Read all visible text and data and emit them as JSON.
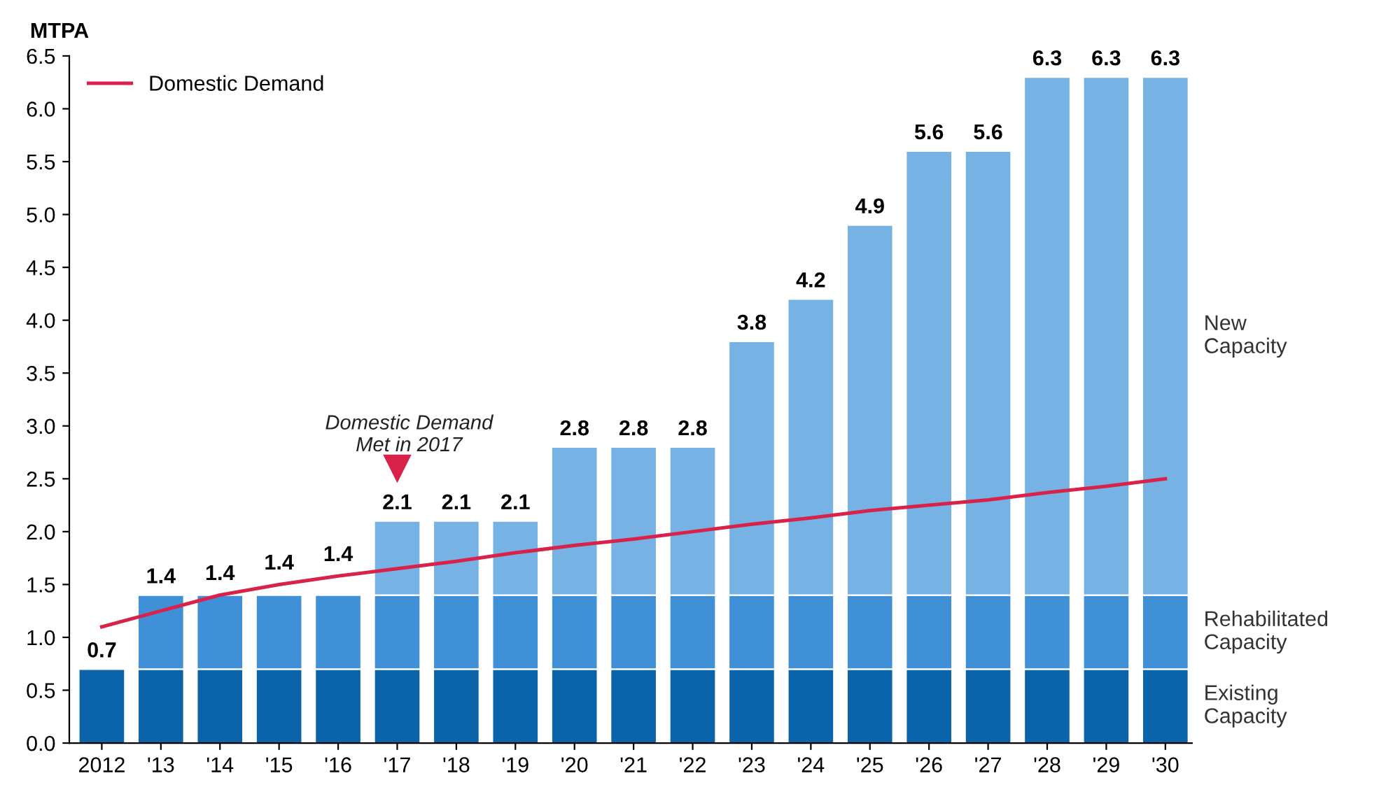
{
  "chart_data": {
    "type": "bar",
    "stacked": true,
    "ylabel": "MTPA",
    "categories": [
      "2012",
      "'13",
      "'14",
      "'15",
      "'16",
      "'17",
      "'18",
      "'19",
      "'20",
      "'21",
      "'22",
      "'23",
      "'24",
      "'25",
      "'26",
      "'27",
      "'28",
      "'29",
      "'30"
    ],
    "series": [
      {
        "name": "Existing Capacity",
        "color": "#0b64a9",
        "values": [
          0.7,
          0.7,
          0.7,
          0.7,
          0.7,
          0.7,
          0.7,
          0.7,
          0.7,
          0.7,
          0.7,
          0.7,
          0.7,
          0.7,
          0.7,
          0.7,
          0.7,
          0.7,
          0.7
        ]
      },
      {
        "name": "Rehabilitated Capacity",
        "color": "#3f90d7",
        "values": [
          null,
          0.7,
          0.7,
          0.7,
          0.7,
          0.7,
          0.7,
          0.7,
          0.7,
          0.7,
          0.7,
          0.7,
          0.7,
          0.7,
          0.7,
          0.7,
          0.7,
          0.7,
          0.7
        ]
      },
      {
        "name": "New Capacity",
        "color": "#76b2e3",
        "values": [
          null,
          null,
          null,
          null,
          null,
          0.7,
          0.7,
          0.7,
          1.4,
          1.4,
          1.4,
          2.4,
          2.8,
          3.5,
          4.2,
          4.2,
          4.9,
          4.9,
          4.9
        ]
      },
      {
        "name": "Domestic Demand",
        "type": "line",
        "color": "#d9224a",
        "values": [
          1.1,
          1.25,
          1.4,
          1.5,
          1.58,
          1.65,
          1.72,
          1.8,
          1.87,
          1.93,
          2.0,
          2.07,
          2.13,
          2.2,
          2.25,
          2.3,
          2.37,
          2.43,
          2.5
        ]
      }
    ],
    "totals": [
      "0.7",
      "1.4",
      "1.4",
      "1.4",
      "1.4",
      "2.1",
      "2.1",
      "2.1",
      "2.8",
      "2.8",
      "2.8",
      "3.8",
      "4.2",
      "4.9",
      "5.6",
      "5.6",
      "6.3",
      "6.3",
      "6.3"
    ],
    "annotations": [
      {
        "text": "Domestic Demand\nMet in 2017",
        "x": "'17",
        "y": 2.6
      }
    ],
    "ylim": [
      0,
      6.5
    ],
    "yticks": [
      {
        "value": 0,
        "label": "0.0"
      },
      {
        "value": 0.5,
        "label": "0.5"
      },
      {
        "value": 1,
        "label": "1.0"
      },
      {
        "value": 1.5,
        "label": "1.5"
      },
      {
        "value": 2,
        "label": "2.0"
      },
      {
        "value": 2.5,
        "label": "2.5"
      },
      {
        "value": 3,
        "label": "3.0"
      },
      {
        "value": 3.5,
        "label": "3.5"
      },
      {
        "value": 4,
        "label": "4.0"
      },
      {
        "value": 4.5,
        "label": "4.5"
      },
      {
        "value": 5,
        "label": "5.0"
      },
      {
        "value": 5.5,
        "label": "5.5"
      },
      {
        "value": 6,
        "label": "6.0"
      },
      {
        "value": 6.5,
        "label": "6.5"
      }
    ],
    "grid": false,
    "legend": "top left"
  }
}
